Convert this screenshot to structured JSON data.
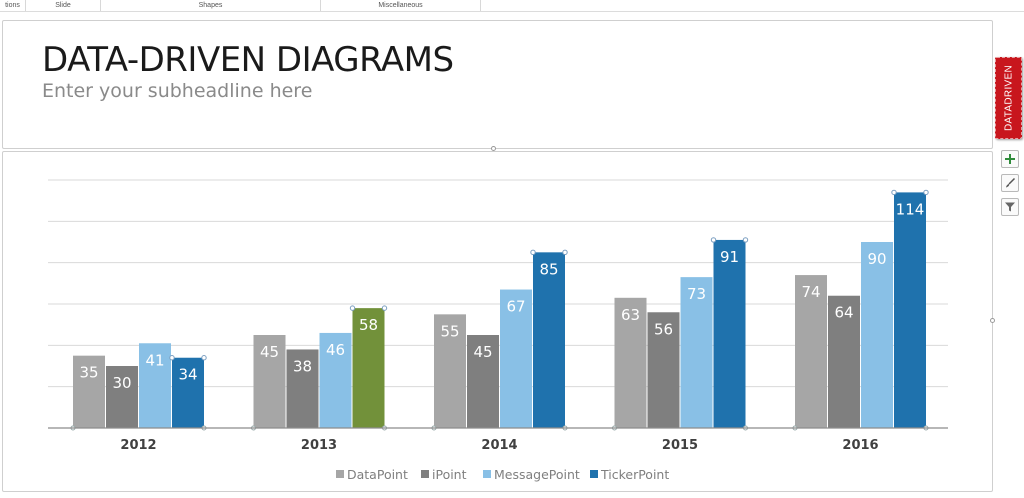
{
  "ribbon": {
    "groups": [
      "tions",
      "Slide",
      "Shapes",
      "Miscellaneous"
    ]
  },
  "slide": {
    "title": "DATA-DRIVEN DIAGRAMS",
    "subtitle": "Enter your subheadline here"
  },
  "side_panel": {
    "tab_label": "DATADRIVEN",
    "buttons": [
      "plus-icon",
      "brush-icon",
      "filter-icon"
    ]
  },
  "colors": {
    "DataPoint": "#a6a6a6",
    "iPoint": "#7f7f7f",
    "MessagePoint": "#89c0e6",
    "TickerPoint": "#1f72ad",
    "highlight": "#72913a",
    "tab": "#c8161d"
  },
  "chart_data": {
    "type": "bar",
    "categories": [
      "2012",
      "2013",
      "2014",
      "2015",
      "2016"
    ],
    "series": [
      {
        "name": "DataPoint",
        "values": [
          35,
          45,
          55,
          63,
          74
        ]
      },
      {
        "name": "iPoint",
        "values": [
          30,
          38,
          45,
          56,
          64
        ]
      },
      {
        "name": "MessagePoint",
        "values": [
          41,
          46,
          67,
          73,
          90
        ]
      },
      {
        "name": "TickerPoint",
        "values": [
          34,
          58,
          85,
          91,
          114
        ]
      }
    ],
    "highlight": {
      "series": "TickerPoint",
      "category": "2013",
      "color": "#72913a"
    },
    "ylim": [
      0,
      120
    ],
    "grid": true,
    "legend": "bottom",
    "title": "",
    "xlabel": "",
    "ylabel": ""
  }
}
